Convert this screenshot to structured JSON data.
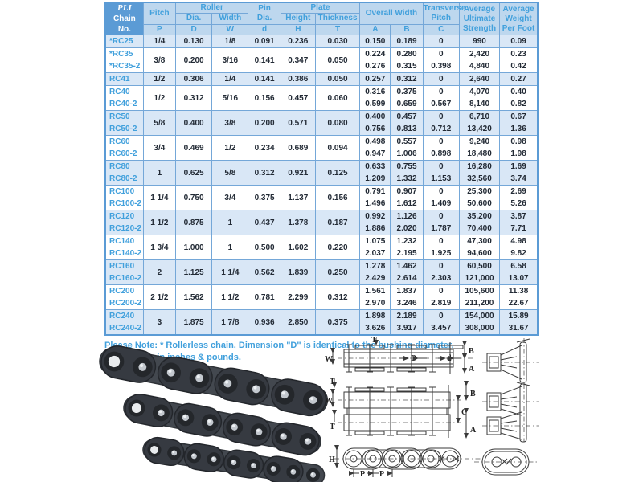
{
  "table": {
    "header": {
      "col1": [
        "PLI",
        "Chain",
        "No."
      ],
      "pitch": "Pitch",
      "p": "P",
      "roller": "Roller",
      "roller_dia": "Dia.",
      "roller_width": "Width",
      "sym_D": "D",
      "sym_W": "W",
      "pin": "Pin",
      "pin_dia": "Dia.",
      "sym_d": "d",
      "plate": "Plate",
      "plate_height": "Height",
      "plate_thickness": "Thickness",
      "sym_H": "H",
      "sym_T": "T",
      "overall_width": "Overall Width",
      "sym_A": "A",
      "sym_B": "B",
      "transverse": [
        "Transverse",
        "Pitch"
      ],
      "sym_C": "C",
      "strength": [
        "Average",
        "Ultimate",
        "Strength"
      ],
      "weight": [
        "Average",
        "Weight",
        "Per Foot"
      ]
    },
    "rows": [
      {
        "shaded": true,
        "no": [
          "*RC25"
        ],
        "pitch": "1/4",
        "dia": "0.130",
        "width": "1/8",
        "pin": "0.091",
        "h": "0.236",
        "t": "0.030",
        "a": [
          "0.150"
        ],
        "b": [
          "0.189"
        ],
        "c": [
          "0"
        ],
        "strength": [
          "990"
        ],
        "weight": [
          "0.09"
        ]
      },
      {
        "shaded": false,
        "no": [
          "*RC35",
          "*RC35-2"
        ],
        "pitch": "3/8",
        "dia": "0.200",
        "width": "3/16",
        "pin": "0.141",
        "h": "0.347",
        "t": "0.050",
        "a": [
          "0.224",
          "0.276"
        ],
        "b": [
          "0.280",
          "0.315"
        ],
        "c": [
          "0",
          "0.398"
        ],
        "strength": [
          "2,420",
          "4,840"
        ],
        "weight": [
          "0.23",
          "0.42"
        ]
      },
      {
        "shaded": true,
        "no": [
          "RC41"
        ],
        "pitch": "1/2",
        "dia": "0.306",
        "width": "1/4",
        "pin": "0.141",
        "h": "0.386",
        "t": "0.050",
        "a": [
          "0.257"
        ],
        "b": [
          "0.312"
        ],
        "c": [
          "0"
        ],
        "strength": [
          "2,640"
        ],
        "weight": [
          "0.27"
        ]
      },
      {
        "shaded": false,
        "no": [
          "RC40",
          "RC40-2"
        ],
        "pitch": "1/2",
        "dia": "0.312",
        "width": "5/16",
        "pin": "0.156",
        "h": "0.457",
        "t": "0.060",
        "a": [
          "0.316",
          "0.599"
        ],
        "b": [
          "0.375",
          "0.659"
        ],
        "c": [
          "0",
          "0.567"
        ],
        "strength": [
          "4,070",
          "8,140"
        ],
        "weight": [
          "0.40",
          "0.82"
        ]
      },
      {
        "shaded": true,
        "no": [
          "RC50",
          "RC50-2"
        ],
        "pitch": "5/8",
        "dia": "0.400",
        "width": "3/8",
        "pin": "0.200",
        "h": "0.571",
        "t": "0.080",
        "a": [
          "0.400",
          "0.756"
        ],
        "b": [
          "0.457",
          "0.813"
        ],
        "c": [
          "0",
          "0.712"
        ],
        "strength": [
          "6,710",
          "13,420"
        ],
        "weight": [
          "0.67",
          "1.36"
        ]
      },
      {
        "shaded": false,
        "no": [
          "RC60",
          "RC60-2"
        ],
        "pitch": "3/4",
        "dia": "0.469",
        "width": "1/2",
        "pin": "0.234",
        "h": "0.689",
        "t": "0.094",
        "a": [
          "0.498",
          "0.947"
        ],
        "b": [
          "0.557",
          "1.006"
        ],
        "c": [
          "0",
          "0.898"
        ],
        "strength": [
          "9,240",
          "18,480"
        ],
        "weight": [
          "0.98",
          "1.98"
        ]
      },
      {
        "shaded": true,
        "no": [
          "RC80",
          "RC80-2"
        ],
        "pitch": "1",
        "dia": "0.625",
        "width": "5/8",
        "pin": "0.312",
        "h": "0.921",
        "t": "0.125",
        "a": [
          "0.633",
          "1.209"
        ],
        "b": [
          "0.755",
          "1.332"
        ],
        "c": [
          "0",
          "1.153"
        ],
        "strength": [
          "16,280",
          "32,560"
        ],
        "weight": [
          "1.69",
          "3.74"
        ]
      },
      {
        "shaded": false,
        "no": [
          "RC100",
          "RC100-2"
        ],
        "pitch": "1 1/4",
        "dia": "0.750",
        "width": "3/4",
        "pin": "0.375",
        "h": "1.137",
        "t": "0.156",
        "a": [
          "0.791",
          "1.496"
        ],
        "b": [
          "0.907",
          "1.612"
        ],
        "c": [
          "0",
          "1.409"
        ],
        "strength": [
          "25,300",
          "50,600"
        ],
        "weight": [
          "2.69",
          "5.26"
        ]
      },
      {
        "shaded": true,
        "no": [
          "RC120",
          "RC120-2"
        ],
        "pitch": "1 1/2",
        "dia": "0.875",
        "width": "1",
        "pin": "0.437",
        "h": "1.378",
        "t": "0.187",
        "a": [
          "0.992",
          "1.886"
        ],
        "b": [
          "1.126",
          "2.020"
        ],
        "c": [
          "0",
          "1.787"
        ],
        "strength": [
          "35,200",
          "70,400"
        ],
        "weight": [
          "3.87",
          "7.71"
        ]
      },
      {
        "shaded": false,
        "no": [
          "RC140",
          "RC140-2"
        ],
        "pitch": "1 3/4",
        "dia": "1.000",
        "width": "1",
        "pin": "0.500",
        "h": "1.602",
        "t": "0.220",
        "a": [
          "1.075",
          "2.037"
        ],
        "b": [
          "1.232",
          "2.195"
        ],
        "c": [
          "0",
          "1.925"
        ],
        "strength": [
          "47,300",
          "94,600"
        ],
        "weight": [
          "4.98",
          "9.82"
        ]
      },
      {
        "shaded": true,
        "no": [
          "RC160",
          "RC160-2"
        ],
        "pitch": "2",
        "dia": "1.125",
        "width": "1 1/4",
        "pin": "0.562",
        "h": "1.839",
        "t": "0.250",
        "a": [
          "1.278",
          "2.429"
        ],
        "b": [
          "1.462",
          "2.614"
        ],
        "c": [
          "0",
          "2.303"
        ],
        "strength": [
          "60,500",
          "121,000"
        ],
        "weight": [
          "6.58",
          "13.07"
        ]
      },
      {
        "shaded": false,
        "no": [
          "RC200",
          "RC200-2"
        ],
        "pitch": "2 1/2",
        "dia": "1.562",
        "width": "1 1/2",
        "pin": "0.781",
        "h": "2.299",
        "t": "0.312",
        "a": [
          "1.561",
          "2.970"
        ],
        "b": [
          "1.837",
          "3.246"
        ],
        "c": [
          "0",
          "2.819"
        ],
        "strength": [
          "105,600",
          "211,200"
        ],
        "weight": [
          "11.38",
          "22.67"
        ]
      },
      {
        "shaded": true,
        "no": [
          "RC240",
          "RC240-2"
        ],
        "pitch": "3",
        "dia": "1.875",
        "width": "1 7/8",
        "pin": "0.936",
        "h": "2.850",
        "t": "0.375",
        "a": [
          "1.898",
          "3.626"
        ],
        "b": [
          "2.189",
          "3.917"
        ],
        "c": [
          "0",
          "3.457"
        ],
        "strength": [
          "154,000",
          "308,000"
        ],
        "weight": [
          "15.89",
          "31.67"
        ]
      }
    ]
  },
  "notes": [
    "Please Note: * Rollerless chain, Dimension \"D\" is identical to the bushing diameter.",
    "Dimensions in inches & pounds."
  ],
  "diagrams": {
    "single": {
      "t": "T",
      "w": "W",
      "d": "D",
      "d_small": "d",
      "b": "B",
      "a": "A"
    },
    "double": {
      "t_top": "T",
      "w": "W",
      "t_bottom": "T",
      "b": "B",
      "c": "C",
      "a": "A"
    },
    "profile": {
      "h": "H",
      "p1": "P",
      "p2": "P"
    }
  },
  "colors": {
    "header_dark": "#5B9BD5",
    "header_light": "#BDD7EE",
    "band": "#D9E7F6",
    "accent_text": "#41A0DC",
    "border": "#74A7D8",
    "data_text": "#222A35"
  }
}
